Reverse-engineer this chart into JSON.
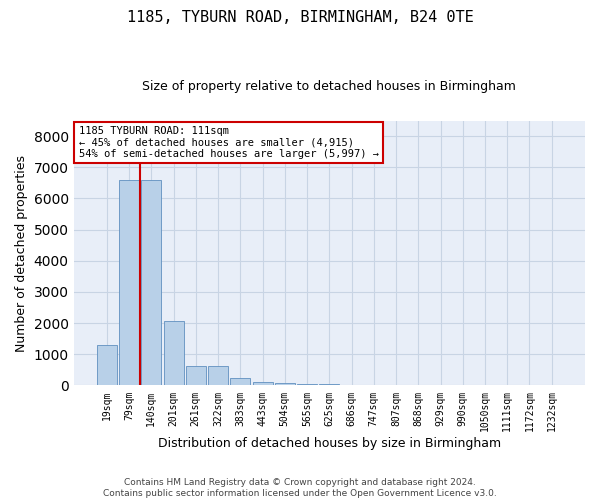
{
  "title": "1185, TYBURN ROAD, BIRMINGHAM, B24 0TE",
  "subtitle": "Size of property relative to detached houses in Birmingham",
  "xlabel": "Distribution of detached houses by size in Birmingham",
  "ylabel": "Number of detached properties",
  "footer_line1": "Contains HM Land Registry data © Crown copyright and database right 2024.",
  "footer_line2": "Contains public sector information licensed under the Open Government Licence v3.0.",
  "categories": [
    "19sqm",
    "79sqm",
    "140sqm",
    "201sqm",
    "261sqm",
    "322sqm",
    "383sqm",
    "443sqm",
    "504sqm",
    "565sqm",
    "625sqm",
    "686sqm",
    "747sqm",
    "807sqm",
    "868sqm",
    "929sqm",
    "990sqm",
    "1050sqm",
    "1111sqm",
    "1172sqm",
    "1232sqm"
  ],
  "bar_values": [
    1300,
    6600,
    6600,
    2060,
    610,
    610,
    230,
    120,
    75,
    50,
    50,
    0,
    0,
    0,
    0,
    0,
    0,
    0,
    0,
    0,
    0
  ],
  "bar_color": "#b8d0e8",
  "bar_edge_color": "#6090c0",
  "grid_color": "#c8d4e4",
  "background_color": "#e8eef8",
  "vline_x": 1.5,
  "vline_color": "#cc0000",
  "annotation_text": "1185 TYBURN ROAD: 111sqm\n← 45% of detached houses are smaller (4,915)\n54% of semi-detached houses are larger (5,997) →",
  "annotation_box_color": "#ffffff",
  "annotation_box_edge_color": "#cc0000",
  "ylim": [
    0,
    8500
  ],
  "yticks": [
    0,
    1000,
    2000,
    3000,
    4000,
    5000,
    6000,
    7000,
    8000
  ],
  "title_fontsize": 11,
  "subtitle_fontsize": 9,
  "ylabel_fontsize": 9,
  "xlabel_fontsize": 9,
  "tick_fontsize": 7,
  "footer_fontsize": 6.5
}
